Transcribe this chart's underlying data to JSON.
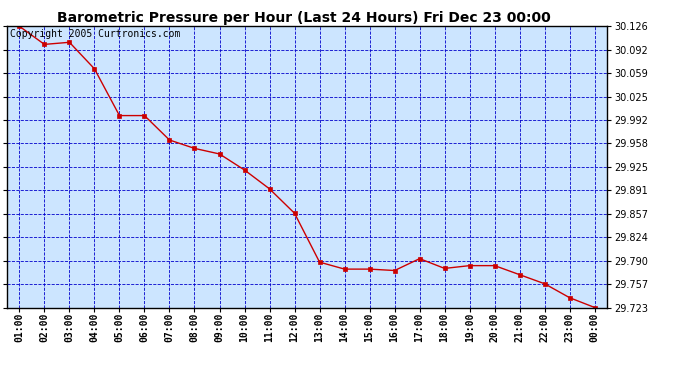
{
  "title": "Barometric Pressure per Hour (Last 24 Hours) Fri Dec 23 00:00",
  "copyright": "Copyright 2005 Curtronics.com",
  "x_labels": [
    "01:00",
    "02:00",
    "03:00",
    "04:00",
    "05:00",
    "06:00",
    "07:00",
    "08:00",
    "09:00",
    "10:00",
    "11:00",
    "12:00",
    "13:00",
    "14:00",
    "15:00",
    "16:00",
    "17:00",
    "18:00",
    "19:00",
    "20:00",
    "21:00",
    "22:00",
    "23:00",
    "00:00"
  ],
  "y_values": [
    30.126,
    30.1,
    30.103,
    30.065,
    29.998,
    29.998,
    29.963,
    29.951,
    29.943,
    29.92,
    29.893,
    29.858,
    29.788,
    29.778,
    29.778,
    29.776,
    29.793,
    29.779,
    29.783,
    29.783,
    29.77,
    29.757,
    29.737,
    29.723
  ],
  "ylim_min": 29.723,
  "ylim_max": 30.126,
  "yticks": [
    30.126,
    30.092,
    30.059,
    30.025,
    29.992,
    29.958,
    29.925,
    29.891,
    29.857,
    29.824,
    29.79,
    29.757,
    29.723
  ],
  "line_color": "#cc0000",
  "marker_color": "#cc0000",
  "bg_color": "#cce5ff",
  "grid_color": "#0000cc",
  "title_fontsize": 10,
  "copyright_fontsize": 7,
  "tick_fontsize": 7,
  "ytick_fontsize": 7
}
